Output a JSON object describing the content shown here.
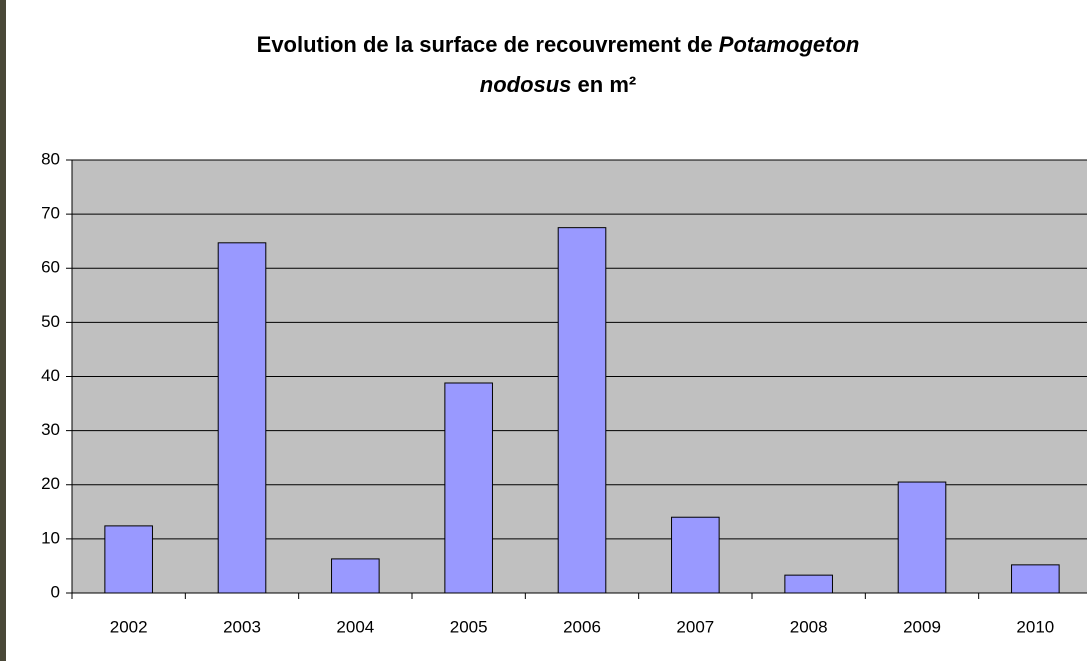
{
  "chart_data": {
    "type": "bar",
    "title_lines": [
      [
        "Evolution de la surface de recouvrement de",
        "Potamogeton"
      ],
      [
        "nodosus",
        "en m²"
      ]
    ],
    "categories": [
      "2002",
      "2003",
      "2004",
      "2005",
      "2006",
      "2007",
      "2008",
      "2009",
      "2010"
    ],
    "values": [
      12.4,
      64.7,
      6.3,
      38.8,
      67.5,
      14,
      3.3,
      20.5,
      5.2
    ],
    "color": "#9999ff",
    "ylim": [
      0,
      80
    ],
    "yticks": [
      0,
      10,
      20,
      30,
      40,
      50,
      60,
      70,
      80
    ],
    "grid": true
  }
}
